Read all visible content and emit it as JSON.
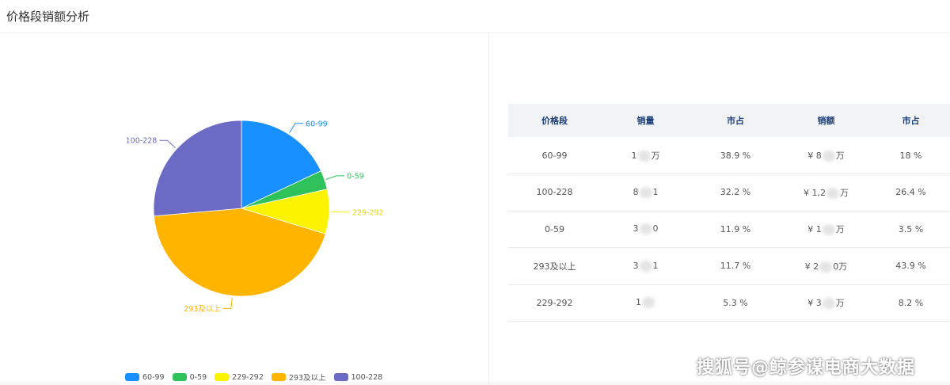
{
  "header": {
    "title": "价格段销额分析"
  },
  "chart_data": {
    "type": "pie",
    "categories": [
      "60-99",
      "0-59",
      "229-292",
      "293及以上",
      "100-228"
    ],
    "values": [
      18,
      3.5,
      8.2,
      43.9,
      26.4
    ],
    "colors": [
      "#1890ff",
      "#2fc25b",
      "#fbf300",
      "#ffb400",
      "#6b6bc6"
    ],
    "legend_position": "bottom",
    "start_angle_deg": -90,
    "direction": "clockwise"
  },
  "table": {
    "headers": [
      "价格段",
      "销量",
      "市占",
      "销额",
      "市占"
    ],
    "rows": [
      {
        "band": "60-99",
        "qty_pre": "1",
        "qty_post": "万",
        "share1": "38.9 %",
        "amt_pre": "¥ 8",
        "amt_post": "万",
        "share2": "18 %"
      },
      {
        "band": "100-228",
        "qty_pre": "8",
        "qty_post": "1",
        "share1": "32.2 %",
        "amt_pre": "¥ 1,2",
        "amt_post": "万",
        "share2": "26.4 %"
      },
      {
        "band": "0-59",
        "qty_pre": "3",
        "qty_post": "0",
        "share1": "11.9 %",
        "amt_pre": "¥ 1",
        "amt_post": "万",
        "share2": "3.5 %"
      },
      {
        "band": "293及以上",
        "qty_pre": "3",
        "qty_post": "1",
        "share1": "11.7 %",
        "amt_pre": "¥ 2",
        "amt_post": "0万",
        "share2": "43.9 %"
      },
      {
        "band": "229-292",
        "qty_pre": "1",
        "qty_post": "",
        "share1": "5.3 %",
        "amt_pre": "¥ 3",
        "amt_post": "万",
        "share2": "8.2 %"
      }
    ]
  },
  "watermark": "搜狐号@鲸参谋电商大数据"
}
